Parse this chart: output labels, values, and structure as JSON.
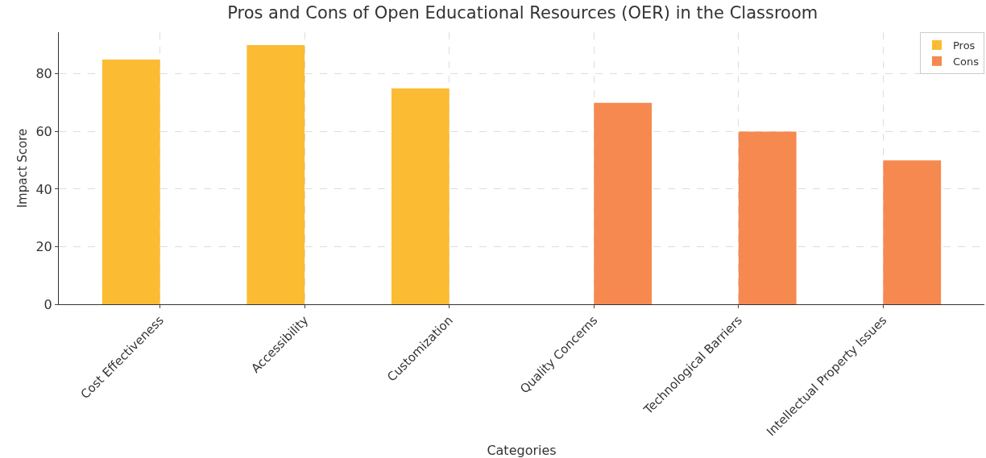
{
  "chart_data": {
    "type": "bar",
    "title": "Pros and Cons of Open Educational Resources (OER) in the Classroom",
    "xlabel": "Categories",
    "ylabel": "Impact Score",
    "categories": [
      "Cost Effectiveness",
      "Accessibility",
      "Customization",
      "Quality Concerns",
      "Technological Barriers",
      "Intellectual Property Issues"
    ],
    "series": [
      {
        "name": "Pros",
        "color": "#fbbc33",
        "values": [
          85,
          90,
          75,
          null,
          null,
          null
        ]
      },
      {
        "name": "Cons",
        "color": "#f5894f",
        "values": [
          null,
          null,
          null,
          70,
          60,
          50
        ]
      }
    ],
    "ylim": [
      0,
      94.5
    ],
    "yticks": [
      0,
      20,
      40,
      60,
      80
    ],
    "grid": true,
    "legend": "top right"
  }
}
